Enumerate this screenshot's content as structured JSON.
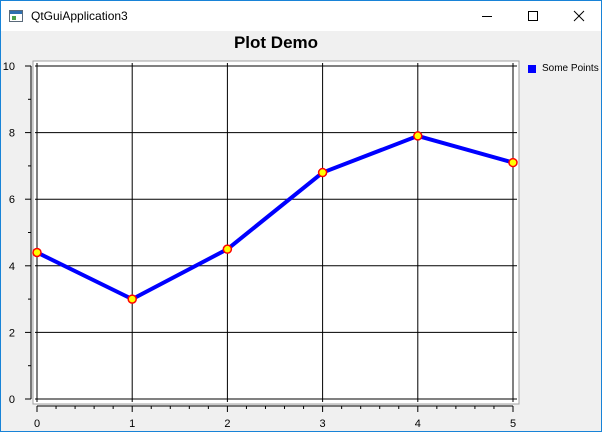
{
  "window": {
    "title": "QtGuiApplication3",
    "icon": "qt-app-icon",
    "controls": [
      "minimize-icon",
      "maximize-icon",
      "close-icon"
    ]
  },
  "chart_data": {
    "type": "line",
    "title": "Plot Demo",
    "xlabel": "",
    "ylabel": "",
    "xlim": [
      0,
      5
    ],
    "ylim": [
      0,
      10
    ],
    "x_ticks": [
      "0",
      "1",
      "2",
      "3",
      "4",
      "5"
    ],
    "y_ticks": [
      "0",
      "2",
      "4",
      "6",
      "8",
      "10"
    ],
    "grid": true,
    "legend_position": "right",
    "series": [
      {
        "name": "Some Points",
        "color": "#0000ff",
        "marker_fill": "#ffff00",
        "marker_edge": "#ff0000",
        "x": [
          0,
          1,
          2,
          3,
          4,
          5
        ],
        "y": [
          4.4,
          3.0,
          4.5,
          6.8,
          7.9,
          7.1
        ]
      }
    ]
  }
}
